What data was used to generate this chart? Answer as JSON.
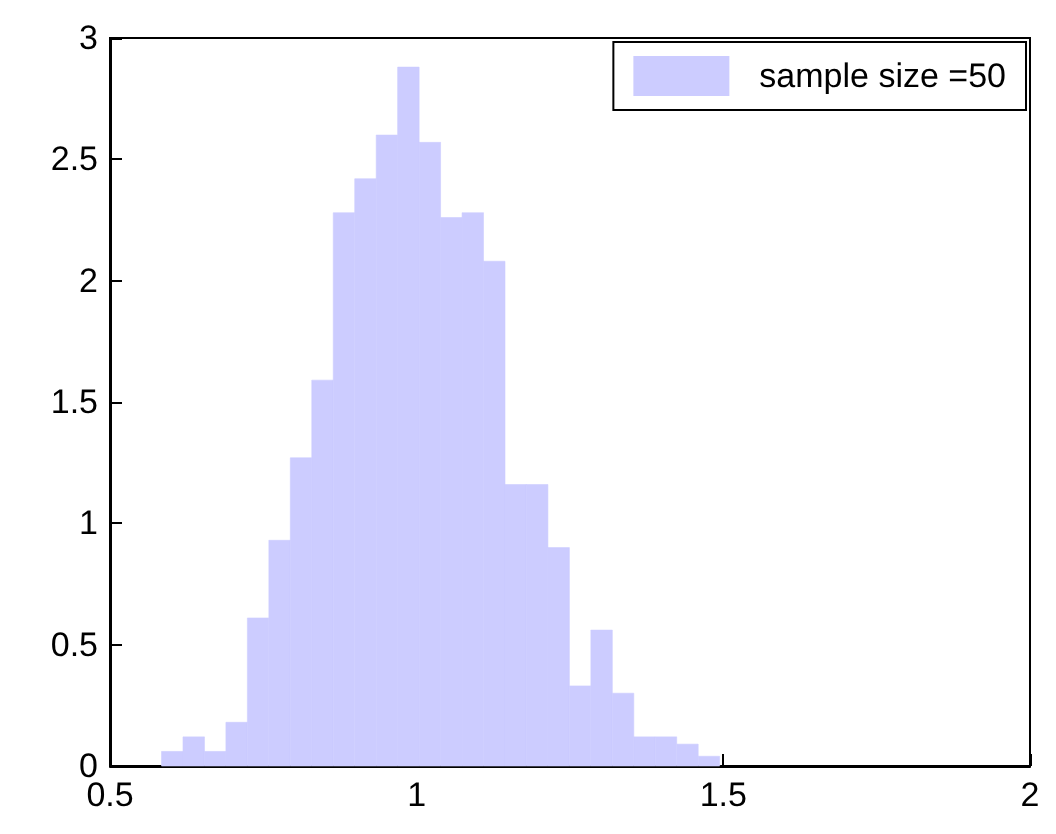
{
  "chart_data": {
    "type": "histogram",
    "bins": [
      0.584,
      0.619,
      0.654,
      0.689,
      0.724,
      0.759,
      0.794,
      0.829,
      0.864,
      0.899,
      0.934,
      0.969,
      1.004,
      1.039,
      1.074,
      1.109,
      1.144,
      1.179,
      1.214,
      1.249,
      1.284,
      1.319,
      1.354,
      1.389,
      1.424,
      1.459,
      1.494
    ],
    "series": [
      {
        "name": "sample size =50",
        "color": "#ccccff",
        "values": [
          0.06,
          0.12,
          0.06,
          0.18,
          0.61,
          0.93,
          1.27,
          1.59,
          2.28,
          2.42,
          2.6,
          2.88,
          2.57,
          2.26,
          2.28,
          2.08,
          1.16,
          1.16,
          0.9,
          0.33,
          0.56,
          0.3,
          0.12,
          0.12,
          0.09,
          0.04
        ]
      }
    ],
    "xlim": [
      0.5,
      2
    ],
    "xticks": [
      0.5,
      1,
      1.5,
      2
    ],
    "ylim": [
      0,
      3
    ],
    "yticks": [
      0,
      0.5,
      1,
      1.5,
      2,
      2.5,
      3
    ],
    "legend": "top right",
    "grid": false
  }
}
